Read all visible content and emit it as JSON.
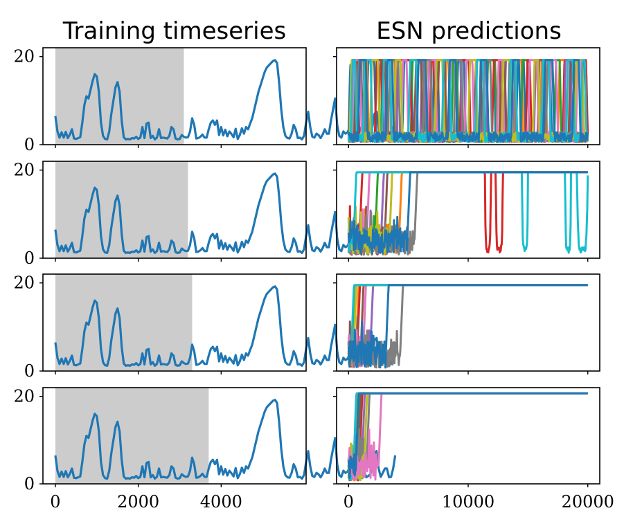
{
  "colors": {
    "shade": "#cccccc",
    "main_series": "#1f77b4",
    "palette": [
      "#1f77b4",
      "#ff7f0e",
      "#2ca02c",
      "#d62728",
      "#9467bd",
      "#8c564b",
      "#e377c2",
      "#7f7f7f",
      "#bcbd22",
      "#17becf"
    ]
  },
  "chart_data": [
    {
      "type": "line",
      "title": "Training timeseries",
      "x_ticks": [
        "0",
        "2000",
        "4000"
      ],
      "x_tick_values": [
        0,
        2000,
        4000
      ],
      "xlim": [
        -300,
        6050
      ],
      "y_ticks": [
        "0",
        "20"
      ],
      "y_tick_values": [
        0,
        20
      ],
      "ylim": [
        0,
        22
      ],
      "rows": [
        {
          "shade_x": [
            0,
            3100
          ]
        },
        {
          "shade_x": [
            0,
            3200
          ]
        },
        {
          "shade_x": [
            0,
            3300
          ]
        },
        {
          "shade_x": [
            0,
            3700
          ]
        }
      ],
      "series": {
        "x_step": 50,
        "values": [
          6.5,
          3,
          1.6,
          2.8,
          1.6,
          2.9,
          1.5,
          2.3,
          3.5,
          1.4,
          1.3,
          1.5,
          1.7,
          5,
          9,
          11,
          10.5,
          12.5,
          14.5,
          16,
          15.5,
          12,
          5,
          2,
          1.3,
          1.2,
          3,
          7,
          10,
          13,
          14.2,
          12,
          5.5,
          1.7,
          1.2,
          1.3,
          1.2,
          1.5,
          1.4,
          1.8,
          1.3,
          1.6,
          4,
          1.5,
          4.8,
          5,
          1.5,
          2,
          1.2,
          1.6,
          3.5,
          1.5,
          1.6,
          1.5,
          1.4,
          2,
          4,
          3.5,
          1.4,
          1.2,
          1.3,
          2.2,
          1.8,
          1.6,
          1.7,
          3,
          6,
          4.5,
          1.4,
          1.5,
          1.8,
          2.3,
          1.6,
          1.6,
          3.5,
          5,
          5.5,
          4.5,
          5.5,
          2.2,
          4,
          2.1,
          3.4,
          1.9,
          3,
          2.4,
          1.7,
          3.6,
          1.3,
          2.2,
          3.7,
          2.5,
          4,
          3.5,
          4.8,
          6,
          8,
          10,
          12,
          13.5,
          15,
          16.5,
          17.5,
          18,
          18.5,
          19,
          19.2,
          18.5,
          14,
          8,
          4,
          2,
          1.5,
          1.4,
          2.5,
          4.5,
          3.5,
          1.5,
          1.6,
          1.2,
          2,
          5,
          7.5,
          4,
          1.8,
          1.6,
          2.5,
          2.2,
          1.5,
          2.3,
          3.5,
          2.5,
          2.5,
          5.5,
          8,
          10.5,
          4.5,
          2,
          1.6,
          3,
          2.5,
          2.8,
          3.8,
          2.4,
          1.5,
          2.5,
          1.8,
          3.5,
          4.3,
          3,
          1.5,
          1.8,
          2.2,
          4,
          7,
          7.5,
          3.5,
          1.6,
          2.5,
          3.5,
          3.5,
          1.5,
          1.6,
          3.5,
          6.5
        ]
      }
    },
    {
      "type": "line",
      "title": "ESN predictions",
      "x_ticks": [
        "0",
        "10000",
        "20000"
      ],
      "x_tick_values": [
        0,
        10000,
        20000
      ],
      "xlim": [
        -1000,
        21000
      ],
      "y_ticks": [
        "",
        ""
      ],
      "y_tick_values": [
        0,
        20
      ],
      "ylim": [
        0,
        22
      ],
      "rows": [
        {
          "plateau": 19.2,
          "series": [
            {
              "color": 0,
              "cycles": [
                [
                  0,
                  300
                ],
                [
                  1500,
                  2300
                ],
                [
                  4500,
                  5400
                ],
                [
                  7000,
                  7600
                ],
                [
                  9000,
                  9800
                ],
                [
                  11500,
                  12300
                ],
                [
                  14000,
                  14800
                ],
                [
                  16200,
                  17000
                ],
                [
                  18500,
                  19700
                ]
              ]
            },
            {
              "color": 1,
              "cycles": [
                [
                  600,
                  1700
                ],
                [
                  3500,
                  4000
                ],
                [
                  6000,
                  6800
                ],
                [
                  8000,
                  8500
                ],
                [
                  10500,
                  11600
                ],
                [
                  13800,
                  14600
                ],
                [
                  16000,
                  16600
                ],
                [
                  17500,
                  18200
                ]
              ]
            },
            {
              "color": 2,
              "cycles": [
                [
                  400,
                  1500
                ],
                [
                  2700,
                  3300
                ],
                [
                  5200,
                  6400
                ],
                [
                  8600,
                  9200
                ],
                [
                  11500,
                  12400
                ],
                [
                  14400,
                  15100
                ],
                [
                  17200,
                  17800
                ]
              ]
            },
            {
              "color": 3,
              "cycles": [
                [
                  200,
                  900
                ],
                [
                  2200,
                  2900
                ],
                [
                  4000,
                  5300
                ],
                [
                  6800,
                  7300
                ],
                [
                  9300,
                  10200
                ],
                [
                  12000,
                  12800
                ],
                [
                  14800,
                  15300
                ],
                [
                  17900,
                  18900
                ],
                [
                  19500,
                  20000
                ]
              ]
            },
            {
              "color": 4,
              "cycles": [
                [
                  100,
                  800
                ],
                [
                  3000,
                  4100
                ],
                [
                  6000,
                  6500
                ],
                [
                  8400,
                  9500
                ],
                [
                  11000,
                  11600
                ],
                [
                  13000,
                  13800
                ],
                [
                  15500,
                  16500
                ],
                [
                  18000,
                  18700
                ]
              ]
            },
            {
              "color": 5,
              "cycles": [
                [
                  500,
                  1200
                ],
                [
                  2500,
                  3200
                ],
                [
                  5500,
                  6200
                ],
                [
                  7400,
                  8200
                ],
                [
                  10500,
                  11200
                ],
                [
                  12600,
                  13200
                ],
                [
                  15800,
                  16400
                ],
                [
                  18400,
                  19000
                ]
              ]
            },
            {
              "color": 6,
              "cycles": [
                [
                  300,
                  1100
                ],
                [
                  4400,
                  5000
                ],
                [
                  6600,
                  7400
                ],
                [
                  9700,
                  10500
                ],
                [
                  12400,
                  13000
                ],
                [
                  15000,
                  15900
                ],
                [
                  16800,
                  17500
                ],
                [
                  19000,
                  19600
                ]
              ]
            },
            {
              "color": 7,
              "cycles": [
                [
                  700,
                  1400
                ],
                [
                  3300,
                  4300
                ],
                [
                  6200,
                  7000
                ],
                [
                  8800,
                  9600
                ],
                [
                  11200,
                  12000
                ],
                [
                  13300,
                  14000
                ],
                [
                  16500,
                  17200
                ]
              ]
            },
            {
              "color": 8,
              "cycles": [
                [
                  100,
                  700
                ],
                [
                  1800,
                  2600
                ],
                [
                  3800,
                  4500
                ],
                [
                  7200,
                  8000
                ],
                [
                  10000,
                  10800
                ],
                [
                  12800,
                  13700
                ],
                [
                  15400,
                  16000
                ],
                [
                  18900,
                  19700
                ]
              ]
            },
            {
              "color": 9,
              "cycles": [
                [
                  200,
                  700
                ],
                [
                  1200,
                  2000
                ],
                [
                  2800,
                  3600
                ],
                [
                  5000,
                  5800
                ],
                [
                  7800,
                  8600
                ],
                [
                  10600,
                  11400
                ],
                [
                  13400,
                  14100
                ],
                [
                  16100,
                  16900
                ],
                [
                  18200,
                  18900
                ],
                [
                  19400,
                  19900
                ]
              ]
            },
            {
              "color": 0,
              "cycles": [
                [
                  800,
                  1600
                ],
                [
                  3100,
                  3800
                ],
                [
                  5700,
                  6600
                ],
                [
                  8300,
                  9100
                ],
                [
                  10900,
                  11700
                ],
                [
                  13600,
                  14400
                ],
                [
                  16300,
                  17200
                ],
                [
                  18700,
                  19400
                ]
              ]
            }
          ]
        },
        {
          "plateau": 19.5,
          "series": [
            {
              "color": 1,
              "rise": 4200
            },
            {
              "color": 2,
              "rise": 2200
            },
            {
              "color": 3,
              "rise": 900,
              "dips": [
                [
                  11400,
                  11900
                ],
                [
                  12300,
                  12900
                ]
              ]
            },
            {
              "color": 4,
              "rise": 2700
            },
            {
              "color": 5,
              "rise": 3000
            },
            {
              "color": 6,
              "rise": 1500
            },
            {
              "color": 7,
              "rise": 5500
            },
            {
              "color": 8,
              "rise": 3400
            },
            {
              "color": 9,
              "rise": 400,
              "dips": [
                [
                  14500,
                  15000
                ],
                [
                  18100,
                  18600
                ],
                [
                  19100,
                  20000
                ]
              ]
            },
            {
              "color": 0,
              "rise": 4900
            }
          ]
        },
        {
          "plateau": 19.5,
          "series": [
            {
              "color": 1,
              "rise": 600
            },
            {
              "color": 2,
              "rise": 300
            },
            {
              "color": 3,
              "rise": 700
            },
            {
              "color": 4,
              "rise": 1800
            },
            {
              "color": 5,
              "rise": 1000
            },
            {
              "color": 6,
              "rise": 1200
            },
            {
              "color": 8,
              "rise": 400
            },
            {
              "color": 9,
              "rise": 200
            },
            {
              "color": 7,
              "rise": 4300
            },
            {
              "color": 0,
              "rise": 3100
            }
          ]
        },
        {
          "plateau": 20.7,
          "series": [
            {
              "color": 1,
              "rise": 500
            },
            {
              "color": 2,
              "rise": 700
            },
            {
              "color": 3,
              "rise": 900
            },
            {
              "color": 4,
              "rise": 1100
            },
            {
              "color": 5,
              "rise": 800
            },
            {
              "color": 7,
              "rise": 1500
            },
            {
              "color": 8,
              "rise": 1300
            },
            {
              "color": 9,
              "rise": 400
            },
            {
              "color": 6,
              "rise": 2500
            },
            {
              "color": 0,
              "rise": 600
            }
          ]
        }
      ]
    }
  ]
}
